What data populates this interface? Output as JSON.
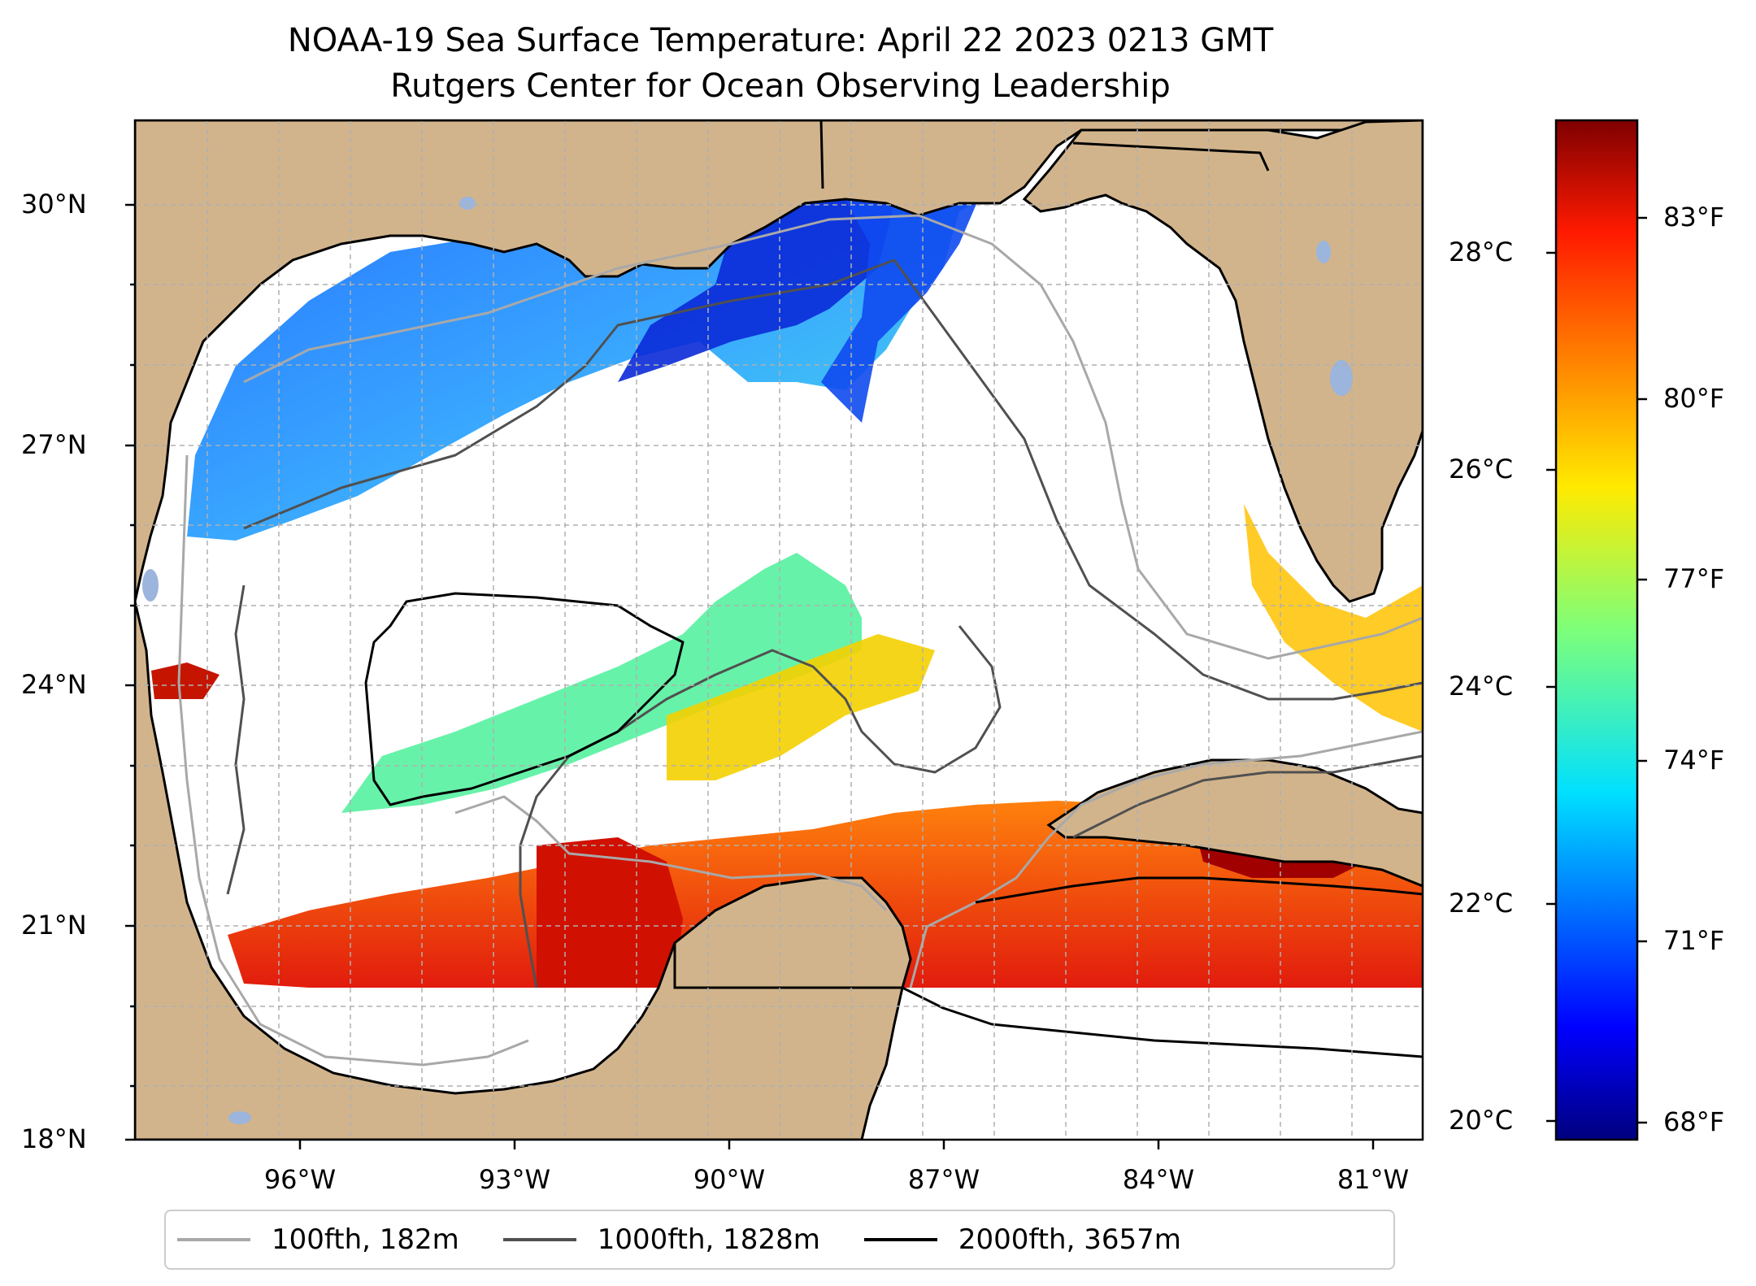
{
  "title": "NOAA-19 Sea Surface Temperature: April 22 2023 0213 GMT",
  "subtitle": "Rutgers Center for Ocean Observing Leadership",
  "lat_ticks": [
    "30°N",
    "27°N",
    "24°N",
    "21°N",
    "18°N"
  ],
  "lon_ticks": [
    "96°W",
    "93°W",
    "90°W",
    "87°W",
    "84°W",
    "81°W"
  ],
  "colorbar": {
    "celsius_ticks": [
      "28°C",
      "26°C",
      "24°C",
      "22°C",
      "20°C"
    ],
    "fahrenheit_ticks": [
      "83°F",
      "80°F",
      "77°F",
      "74°F",
      "71°F",
      "68°F"
    ],
    "colormap": "jet",
    "range_celsius": [
      19.8,
      29.2
    ]
  },
  "legend": [
    {
      "label": "100fth, 182m",
      "color": "#a8a8a8"
    },
    {
      "label": "1000fth, 1828m",
      "color": "#505050"
    },
    {
      "label": "2000fth, 3657m",
      "color": "#000000"
    }
  ],
  "colors": {
    "land": "#d2b48c",
    "ocean_no_data": "#ffffff",
    "lakes": "#9bb5dc",
    "grid": "#b0b0b0"
  }
}
